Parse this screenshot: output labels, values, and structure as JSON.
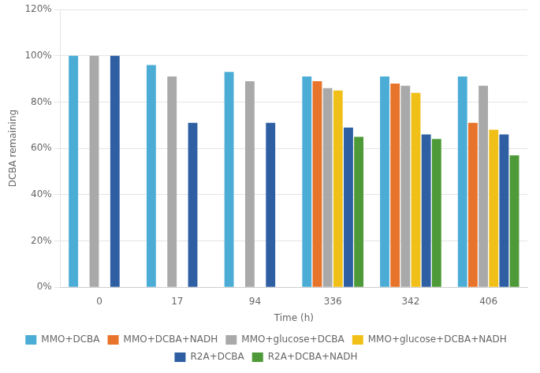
{
  "chart_data": {
    "type": "bar",
    "categories": [
      "0",
      "17",
      "94",
      "336",
      "342",
      "406"
    ],
    "series": [
      {
        "name": "MMO+DCBA",
        "color": "#4BACD6",
        "values": [
          100,
          96,
          93,
          91,
          91,
          91
        ]
      },
      {
        "name": "MMO+DCBA+NADH",
        "color": "#E8732A",
        "values": [
          null,
          null,
          null,
          89,
          88,
          71
        ]
      },
      {
        "name": "MMO+glucose+DCBA",
        "color": "#A9A9A9",
        "values": [
          100,
          91,
          89,
          86,
          87,
          87
        ]
      },
      {
        "name": "MMO+glucose+DCBA+NADH",
        "color": "#F0C018",
        "values": [
          null,
          null,
          null,
          85,
          84,
          68
        ]
      },
      {
        "name": "R2A+DCBA",
        "color": "#2E5FA3",
        "values": [
          100,
          71,
          71,
          69,
          66,
          66
        ]
      },
      {
        "name": "R2A+DCBA+NADH",
        "color": "#4E9A38",
        "values": [
          null,
          null,
          null,
          65,
          64,
          57
        ]
      }
    ],
    "xlabel": "Time (h)",
    "ylabel": "DCBA remaining",
    "ylim": [
      0,
      120
    ],
    "yticks": [
      {
        "value": 0,
        "label": "0%"
      },
      {
        "value": 20,
        "label": "20%"
      },
      {
        "value": 40,
        "label": "40%"
      },
      {
        "value": 60,
        "label": "60%"
      },
      {
        "value": 80,
        "label": "80%"
      },
      {
        "value": 100,
        "label": "100%"
      },
      {
        "value": 120,
        "label": "120%"
      }
    ],
    "grid": true,
    "legend": "bottom"
  }
}
